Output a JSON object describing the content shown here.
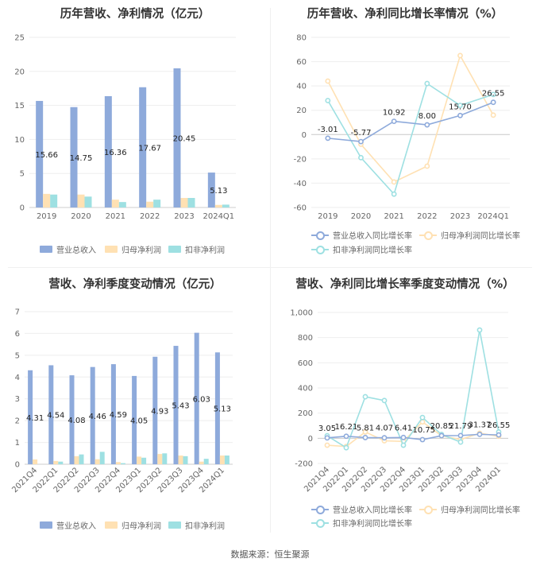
{
  "colors": {
    "revenue": "#8eaadb",
    "parent_np": "#ffe1b3",
    "deducted_np": "#9ee0e2",
    "grid": "#eeeeee",
    "axis": "#cccccc"
  },
  "legend": {
    "bar_revenue": "营业总收入",
    "bar_parent": "归母净利润",
    "bar_deducted": "扣非净利润",
    "line_revenue": "营业总收入同比增长率",
    "line_parent": "归母净利润同比增长率",
    "line_deducted": "扣非净利润同比增长率"
  },
  "footer": {
    "source": "数据来源：恒生聚源"
  },
  "chart_data": [
    {
      "type": "bar",
      "title": "历年营收、净利情况（亿元）",
      "categories": [
        "2019",
        "2020",
        "2021",
        "2022",
        "2023",
        "2024Q1"
      ],
      "ylim": [
        0,
        25
      ],
      "yticks": [
        0,
        5,
        10,
        15,
        20,
        25
      ],
      "grid": true,
      "legend_position": "bottom",
      "series": [
        {
          "name": "营业总收入",
          "values": [
            15.66,
            14.75,
            16.36,
            17.67,
            20.45,
            5.13
          ],
          "labels": [
            "15.66",
            "14.75",
            "16.36",
            "17.67",
            "20.45",
            "5.13"
          ]
        },
        {
          "name": "归母净利润",
          "values": [
            2.0,
            1.9,
            1.15,
            0.85,
            1.4,
            0.38
          ]
        },
        {
          "name": "扣非净利润",
          "values": [
            1.9,
            1.6,
            0.8,
            1.15,
            1.4,
            0.42
          ]
        }
      ]
    },
    {
      "type": "line",
      "title": "历年营收、净利同比增长率情况（%）",
      "categories": [
        "2019",
        "2020",
        "2021",
        "2022",
        "2023",
        "2024Q1"
      ],
      "ylim": [
        -60,
        80
      ],
      "yticks": [
        -60,
        -40,
        -20,
        0,
        20,
        40,
        60,
        80
      ],
      "grid": true,
      "legend_position": "bottom",
      "series": [
        {
          "name": "营业总收入同比增长率",
          "values": [
            -3.01,
            -5.77,
            10.92,
            8.0,
            15.7,
            26.55
          ],
          "labels": [
            "-3.01",
            "-5.77",
            "10.92",
            "8.00",
            "15.70",
            "26.55"
          ]
        },
        {
          "name": "归母净利润同比增长率",
          "values": [
            44,
            -8,
            -39,
            -26,
            65,
            16
          ]
        },
        {
          "name": "扣非净利润同比增长率",
          "values": [
            28,
            -19,
            -49,
            42,
            24,
            33
          ]
        }
      ]
    },
    {
      "type": "bar",
      "title": "营收、净利季度变动情况（亿元）",
      "categories": [
        "2021Q4",
        "2022Q1",
        "2022Q2",
        "2022Q3",
        "2022Q4",
        "2023Q1",
        "2023Q2",
        "2023Q3",
        "2023Q4",
        "2024Q1"
      ],
      "ylim": [
        0,
        7
      ],
      "yticks": [
        0,
        1,
        2,
        3,
        4,
        5,
        6,
        7
      ],
      "grid": true,
      "legend_position": "bottom",
      "series": [
        {
          "name": "营业总收入",
          "values": [
            4.31,
            4.54,
            4.08,
            4.46,
            4.59,
            4.05,
            4.93,
            5.43,
            6.03,
            5.13
          ],
          "labels": [
            "4.31",
            "4.54",
            "4.08",
            "4.46",
            "4.59",
            "4.05",
            "4.93",
            "5.43",
            "6.03",
            "5.13"
          ]
        },
        {
          "name": "归母净利润",
          "values": [
            0.22,
            0.15,
            0.37,
            0.23,
            0.1,
            0.35,
            0.47,
            0.4,
            0.12,
            0.4
          ]
        },
        {
          "name": "扣非净利润",
          "values": [
            0.0,
            0.12,
            0.45,
            0.57,
            0.05,
            0.3,
            0.5,
            0.37,
            0.25,
            0.4
          ]
        }
      ]
    },
    {
      "type": "line",
      "title": "营收、净利同比增长率季度变动情况（%）",
      "categories": [
        "2021Q4",
        "2022Q1",
        "2022Q2",
        "2022Q3",
        "2022Q4",
        "2023Q1",
        "2023Q2",
        "2023Q3",
        "2023Q4",
        "2024Q1"
      ],
      "ylim": [
        -200,
        1000
      ],
      "yticks": [
        -200,
        0,
        200,
        400,
        600,
        800,
        1000
      ],
      "ytick_labels": [
        "-200",
        "0",
        "200",
        "400",
        "600",
        "800",
        "1,000"
      ],
      "grid": true,
      "legend_position": "bottom",
      "series": [
        {
          "name": "营业总收入同比增长率",
          "values": [
            3.05,
            16.21,
            5.81,
            4.07,
            6.41,
            -10.75,
            20.85,
            21.79,
            31.37,
            26.55
          ],
          "labels": [
            "3.05",
            "16.21",
            "5.81",
            "4.07",
            "6.41",
            "-10.75",
            "20.85",
            "21.79",
            "31.37",
            "26.55"
          ]
        },
        {
          "name": "归母净利润同比增长率",
          "values": [
            -55,
            -65,
            50,
            -20,
            -25,
            130,
            20,
            -10,
            40,
            16
          ]
        },
        {
          "name": "扣非净利润同比增长率",
          "values": [
            20,
            -75,
            330,
            300,
            -55,
            165,
            30,
            -30,
            860,
            50
          ]
        }
      ]
    }
  ]
}
